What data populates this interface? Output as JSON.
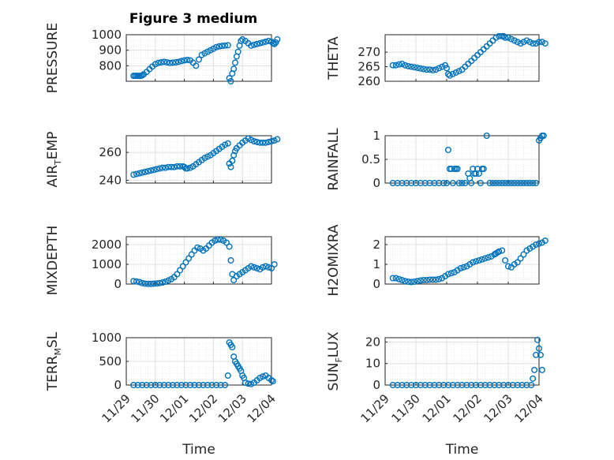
{
  "figure_title": "Figure 3 medium",
  "marker_color": "#0072bd",
  "chart_data": [
    {
      "type": "scatter",
      "ylabel_main": "PRESSURE",
      "ylabel_sub": "",
      "ylabel_post": "",
      "yticks": [
        "800",
        "900",
        "1000"
      ],
      "ylim": [
        700,
        1000
      ],
      "grid": true,
      "x": [
        0.25,
        0.3,
        0.35,
        0.4,
        0.45,
        0.5,
        0.55,
        0.6,
        0.7,
        0.8,
        0.9,
        1.0,
        1.1,
        1.2,
        1.3,
        1.4,
        1.5,
        1.6,
        1.7,
        1.8,
        1.9,
        2.0,
        2.1,
        2.2,
        2.3,
        2.4,
        2.5,
        2.6,
        2.7,
        2.8,
        2.9,
        3.0,
        3.1,
        3.2,
        3.3,
        3.4,
        3.5,
        3.55,
        3.6,
        3.65,
        3.7,
        3.75,
        3.8,
        3.85,
        3.9,
        3.95,
        4.0,
        4.1,
        4.2,
        4.3,
        4.4,
        4.5,
        4.6,
        4.7,
        4.8,
        4.9,
        5.0,
        5.05,
        5.1,
        5.15,
        5.2
      ],
      "y": [
        735,
        735,
        735,
        735,
        735,
        735,
        738,
        745,
        760,
        778,
        795,
        810,
        818,
        822,
        825,
        822,
        818,
        820,
        822,
        825,
        830,
        835,
        838,
        835,
        820,
        800,
        840,
        870,
        880,
        890,
        900,
        910,
        920,
        925,
        928,
        930,
        932,
        720,
        700,
        750,
        780,
        820,
        860,
        890,
        930,
        960,
        970,
        960,
        945,
        930,
        935,
        940,
        945,
        950,
        955,
        960,
        955,
        945,
        940,
        950,
        970
      ]
    },
    {
      "type": "scatter",
      "ylabel_main": "THETA",
      "ylabel_sub": "",
      "ylabel_post": "",
      "yticks": [
        "260",
        "265",
        "270"
      ],
      "ylim": [
        260,
        276
      ],
      "grid": true,
      "x": [
        0.25,
        0.35,
        0.45,
        0.55,
        0.65,
        0.75,
        0.85,
        0.95,
        1.05,
        1.15,
        1.25,
        1.35,
        1.45,
        1.55,
        1.65,
        1.75,
        1.85,
        1.95,
        2.0,
        2.05,
        2.1,
        2.2,
        2.3,
        2.4,
        2.5,
        2.6,
        2.7,
        2.8,
        2.9,
        3.0,
        3.1,
        3.2,
        3.3,
        3.4,
        3.5,
        3.6,
        3.7,
        3.8,
        3.85,
        3.9,
        4.0,
        4.1,
        4.2,
        4.3,
        4.4,
        4.5,
        4.6,
        4.7,
        4.8,
        4.9,
        5.0,
        5.1,
        5.2
      ],
      "y": [
        265.5,
        265.5,
        265.8,
        266,
        265.5,
        265.2,
        265,
        264.8,
        264.6,
        264.4,
        264.2,
        264,
        264,
        263.8,
        264,
        264.5,
        265,
        265.5,
        264.5,
        262.5,
        262,
        262.5,
        263,
        263.5,
        264,
        265,
        266,
        267,
        268,
        269,
        270,
        271,
        272,
        273,
        274,
        275,
        275.5,
        275.5,
        275.5,
        275,
        275,
        274.5,
        274,
        273.5,
        273,
        273.5,
        274,
        273.5,
        273,
        273,
        273.5,
        273.5,
        273
      ]
    },
    {
      "type": "scatter",
      "ylabel_main": "AIR",
      "ylabel_sub": "T",
      "ylabel_post": "EMP",
      "yticks": [
        "240",
        "260"
      ],
      "ylim": [
        238,
        272
      ],
      "grid": true,
      "x": [
        0.25,
        0.35,
        0.45,
        0.55,
        0.65,
        0.75,
        0.85,
        0.95,
        1.05,
        1.15,
        1.25,
        1.35,
        1.45,
        1.55,
        1.65,
        1.75,
        1.85,
        1.95,
        2.0,
        2.05,
        2.1,
        2.2,
        2.3,
        2.4,
        2.5,
        2.6,
        2.7,
        2.8,
        2.9,
        3.0,
        3.1,
        3.2,
        3.3,
        3.4,
        3.5,
        3.55,
        3.6,
        3.65,
        3.7,
        3.75,
        3.8,
        3.9,
        4.0,
        4.1,
        4.2,
        4.3,
        4.4,
        4.5,
        4.6,
        4.7,
        4.8,
        4.9,
        5.0,
        5.1,
        5.2
      ],
      "y": [
        244,
        244.5,
        245,
        245.5,
        246,
        246.5,
        247,
        247.5,
        248,
        248.5,
        249,
        249,
        249.5,
        249.5,
        249.5,
        250,
        250,
        250,
        249.5,
        248.5,
        248.5,
        249,
        250,
        251.5,
        253,
        254.5,
        256,
        257,
        258,
        259.5,
        261,
        262.5,
        264,
        265.5,
        266.5,
        252,
        249.5,
        254,
        258,
        261,
        263,
        265,
        267,
        268.5,
        270,
        269,
        268,
        267.5,
        267,
        267,
        267,
        267.5,
        268,
        268.5,
        269.5
      ]
    },
    {
      "type": "scatter",
      "ylabel_main": "RAINFALL",
      "ylabel_sub": "",
      "ylabel_post": "",
      "yticks": [
        "0",
        "0.5",
        "1"
      ],
      "ylim": [
        0,
        1
      ],
      "grid": true,
      "x": [
        0.25,
        0.4,
        0.55,
        0.7,
        0.85,
        1.0,
        1.15,
        1.3,
        1.45,
        1.6,
        1.75,
        1.9,
        2.0,
        2.05,
        2.1,
        2.15,
        2.2,
        2.25,
        2.3,
        2.35,
        2.4,
        2.5,
        2.6,
        2.7,
        2.75,
        2.8,
        2.85,
        2.9,
        2.95,
        3.0,
        3.05,
        3.1,
        3.15,
        3.2,
        3.3,
        3.4,
        3.5,
        3.6,
        3.7,
        3.8,
        3.9,
        4.0,
        4.1,
        4.2,
        4.3,
        4.4,
        4.5,
        4.6,
        4.7,
        4.8,
        4.9,
        5.0,
        5.05,
        5.1,
        5.15
      ],
      "y": [
        0,
        0,
        0,
        0,
        0,
        0,
        0,
        0,
        0,
        0,
        0,
        0,
        0,
        0.7,
        0.3,
        0.3,
        0,
        0.3,
        0.3,
        0.3,
        0,
        0,
        0,
        0.2,
        0.1,
        0,
        0.3,
        0.2,
        0.2,
        0.3,
        0.2,
        0,
        0.3,
        0.3,
        1.0,
        0,
        0,
        0,
        0,
        0,
        0,
        0,
        0,
        0,
        0,
        0,
        0,
        0,
        0,
        0,
        0,
        0.9,
        0.95,
        1.0,
        1.0
      ]
    },
    {
      "type": "scatter",
      "ylabel_main": "MIXDEPTH",
      "ylabel_sub": "",
      "ylabel_post": "",
      "yticks": [
        "0",
        "1000",
        "2000"
      ],
      "ylim": [
        0,
        2400
      ],
      "grid": true,
      "x": [
        0.25,
        0.35,
        0.45,
        0.55,
        0.65,
        0.75,
        0.85,
        0.95,
        1.05,
        1.15,
        1.25,
        1.35,
        1.45,
        1.55,
        1.65,
        1.75,
        1.85,
        1.95,
        2.05,
        2.15,
        2.25,
        2.35,
        2.45,
        2.55,
        2.65,
        2.75,
        2.85,
        2.95,
        3.05,
        3.15,
        3.25,
        3.35,
        3.45,
        3.55,
        3.6,
        3.65,
        3.7,
        3.8,
        3.9,
        4.0,
        4.1,
        4.2,
        4.3,
        4.4,
        4.5,
        4.6,
        4.7,
        4.8,
        4.9,
        5.0,
        5.1
      ],
      "y": [
        150,
        130,
        100,
        50,
        20,
        10,
        10,
        20,
        30,
        50,
        80,
        120,
        180,
        250,
        350,
        500,
        700,
        900,
        1100,
        1300,
        1500,
        1700,
        1850,
        1800,
        1700,
        1800,
        1950,
        2100,
        2200,
        2250,
        2250,
        2200,
        2100,
        1900,
        1200,
        500,
        200,
        400,
        500,
        600,
        700,
        800,
        900,
        850,
        800,
        750,
        850,
        900,
        850,
        800,
        1000
      ]
    },
    {
      "type": "scatter",
      "ylabel_main": "H2OMIXRA",
      "ylabel_sub": "",
      "ylabel_post": "",
      "yticks": [
        "0",
        "1",
        "2"
      ],
      "ylim": [
        0,
        2.4
      ],
      "grid": true,
      "x": [
        0.25,
        0.35,
        0.45,
        0.55,
        0.65,
        0.75,
        0.85,
        0.95,
        1.05,
        1.15,
        1.25,
        1.35,
        1.45,
        1.55,
        1.65,
        1.75,
        1.85,
        1.95,
        2.05,
        2.15,
        2.25,
        2.35,
        2.45,
        2.55,
        2.65,
        2.75,
        2.85,
        2.95,
        3.05,
        3.15,
        3.25,
        3.35,
        3.45,
        3.55,
        3.6,
        3.65,
        3.7,
        3.8,
        3.9,
        4.0,
        4.1,
        4.2,
        4.3,
        4.4,
        4.5,
        4.6,
        4.7,
        4.8,
        4.9,
        5.0,
        5.1,
        5.2
      ],
      "y": [
        0.3,
        0.3,
        0.25,
        0.2,
        0.15,
        0.12,
        0.1,
        0.12,
        0.15,
        0.18,
        0.2,
        0.2,
        0.22,
        0.22,
        0.22,
        0.25,
        0.3,
        0.4,
        0.5,
        0.55,
        0.6,
        0.7,
        0.8,
        0.85,
        0.9,
        1.0,
        1.1,
        1.15,
        1.2,
        1.25,
        1.3,
        1.35,
        1.4,
        1.5,
        1.55,
        1.6,
        1.65,
        1.7,
        1.2,
        0.9,
        0.85,
        1.0,
        1.1,
        1.3,
        1.5,
        1.7,
        1.8,
        1.9,
        2.0,
        2.05,
        2.1,
        2.2
      ]
    },
    {
      "type": "scatter",
      "ylabel_main": "TERR",
      "ylabel_sub": "M",
      "ylabel_post": "SL",
      "yticks": [
        "0",
        "500",
        "1000"
      ],
      "ylim": [
        0,
        1000
      ],
      "grid": true,
      "x": [
        0.25,
        0.4,
        0.55,
        0.7,
        0.85,
        1.0,
        1.15,
        1.3,
        1.45,
        1.6,
        1.75,
        1.9,
        2.05,
        2.2,
        2.35,
        2.5,
        2.65,
        2.8,
        2.95,
        3.1,
        3.25,
        3.4,
        3.5,
        3.55,
        3.6,
        3.65,
        3.7,
        3.75,
        3.8,
        3.85,
        3.9,
        3.95,
        4.0,
        4.05,
        4.1,
        4.2,
        4.3,
        4.4,
        4.5,
        4.6,
        4.7,
        4.8,
        4.9,
        5.0,
        5.05
      ],
      "y": [
        0,
        0,
        0,
        0,
        0,
        0,
        0,
        0,
        0,
        0,
        0,
        0,
        0,
        0,
        0,
        0,
        0,
        0,
        0,
        0,
        0,
        0,
        200,
        900,
        850,
        800,
        600,
        500,
        450,
        400,
        350,
        300,
        200,
        150,
        50,
        30,
        20,
        50,
        100,
        150,
        180,
        200,
        150,
        100,
        80
      ]
    },
    {
      "type": "scatter",
      "ylabel_main": "SUN",
      "ylabel_sub": "F",
      "ylabel_post": "LUX",
      "yticks": [
        "0",
        "10",
        "20"
      ],
      "ylim": [
        0,
        22
      ],
      "grid": true,
      "x": [
        0.25,
        0.4,
        0.55,
        0.7,
        0.85,
        1.0,
        1.15,
        1.3,
        1.45,
        1.6,
        1.75,
        1.9,
        2.05,
        2.2,
        2.35,
        2.5,
        2.65,
        2.8,
        2.95,
        3.1,
        3.25,
        3.4,
        3.55,
        3.7,
        3.85,
        4.0,
        4.15,
        4.3,
        4.45,
        4.6,
        4.75,
        4.8,
        4.85,
        4.9,
        4.95,
        5.0,
        5.05,
        5.1
      ],
      "y": [
        0,
        0,
        0,
        0,
        0,
        0,
        0,
        0,
        0,
        0,
        0,
        0,
        0,
        0,
        0,
        0,
        0,
        0,
        0,
        0,
        0,
        0,
        0,
        0,
        0,
        0,
        0,
        0,
        0,
        0,
        0,
        3,
        7,
        14,
        21,
        17,
        14,
        7
      ]
    }
  ],
  "x_axis": {
    "ticks": [
      "11/29",
      "11/30",
      "12/01",
      "12/02",
      "12/03",
      "12/04"
    ],
    "label": "Time"
  }
}
